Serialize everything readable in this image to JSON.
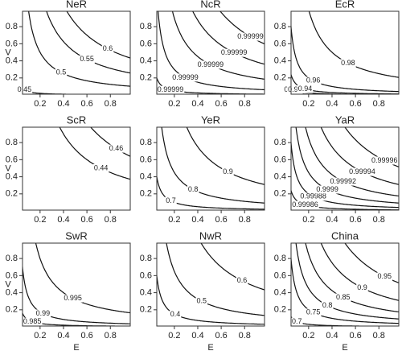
{
  "chart_data": [
    {
      "type": "contour",
      "title": "NeR",
      "ylabel": "V",
      "xlim": [
        0.05,
        0.97
      ],
      "ylim": [
        0.01,
        0.98
      ],
      "xticks": [
        0.2,
        0.4,
        0.6,
        0.8
      ],
      "yticks": [
        0.2,
        0.4,
        0.6,
        0.8
      ],
      "levels": [
        0.45,
        0.5,
        0.55,
        0.6
      ]
    },
    {
      "type": "contour",
      "title": "NcR",
      "xlim": [
        0.05,
        0.97
      ],
      "ylim": [
        0.01,
        0.98
      ],
      "xticks": [
        0.2,
        0.4,
        0.6,
        0.8
      ],
      "yticks": [
        0.2,
        0.4,
        0.6,
        0.8
      ],
      "levels": [
        0.99999,
        0.99999,
        0.99999,
        0.99999,
        0.99999
      ]
    },
    {
      "type": "contour",
      "title": "EcR",
      "xlim": [
        0.05,
        0.97
      ],
      "ylim": [
        0.01,
        0.98
      ],
      "xticks": [
        0.2,
        0.4,
        0.6,
        0.8
      ],
      "yticks": [
        0.2,
        0.4,
        0.6,
        0.8
      ],
      "levels": [
        0.9,
        0.92,
        0.94,
        0.96,
        0.98
      ]
    },
    {
      "type": "contour",
      "title": "ScR",
      "ylabel": "V",
      "xlim": [
        0.05,
        0.97
      ],
      "ylim": [
        0.01,
        0.98
      ],
      "xticks": [
        0.2,
        0.4,
        0.6,
        0.8
      ],
      "yticks": [
        0.2,
        0.4,
        0.6,
        0.8
      ],
      "levels": [
        0.44,
        0.46
      ]
    },
    {
      "type": "contour",
      "title": "YeR",
      "xlim": [
        0.05,
        0.97
      ],
      "ylim": [
        0.01,
        0.98
      ],
      "xticks": [
        0.2,
        0.4,
        0.6,
        0.8
      ],
      "yticks": [
        0.2,
        0.4,
        0.6,
        0.8
      ],
      "levels": [
        0.7,
        0.8,
        0.9
      ]
    },
    {
      "type": "contour",
      "title": "YaR",
      "xlim": [
        0.05,
        0.97
      ],
      "ylim": [
        0.01,
        0.98
      ],
      "xticks": [
        0.2,
        0.4,
        0.6,
        0.8
      ],
      "yticks": [
        0.2,
        0.4,
        0.6,
        0.8
      ],
      "levels": [
        0.99986,
        0.99988,
        0.9999,
        0.99992,
        0.99994,
        0.99996
      ]
    },
    {
      "type": "contour",
      "title": "SwR",
      "xlabel": "E",
      "ylabel": "V",
      "xlim": [
        0.05,
        0.97
      ],
      "ylim": [
        0.01,
        0.98
      ],
      "xticks": [
        0.2,
        0.4,
        0.6,
        0.8
      ],
      "yticks": [
        0.2,
        0.4,
        0.6,
        0.8
      ],
      "levels": [
        0.985,
        0.99,
        0.995
      ]
    },
    {
      "type": "contour",
      "title": "NwR",
      "xlabel": "E",
      "xlim": [
        0.05,
        0.97
      ],
      "ylim": [
        0.01,
        0.98
      ],
      "xticks": [
        0.2,
        0.4,
        0.6,
        0.8
      ],
      "yticks": [
        0.2,
        0.4,
        0.6,
        0.8
      ],
      "levels": [
        0.4,
        0.5,
        0.6
      ]
    },
    {
      "type": "contour",
      "title": "China",
      "xlabel": "E",
      "xlim": [
        0.05,
        0.97
      ],
      "ylim": [
        0.01,
        0.98
      ],
      "xticks": [
        0.2,
        0.4,
        0.6,
        0.8
      ],
      "yticks": [
        0.2,
        0.4,
        0.6,
        0.8
      ],
      "levels": [
        0.7,
        0.75,
        0.8,
        0.85,
        0.9,
        0.95
      ]
    }
  ]
}
